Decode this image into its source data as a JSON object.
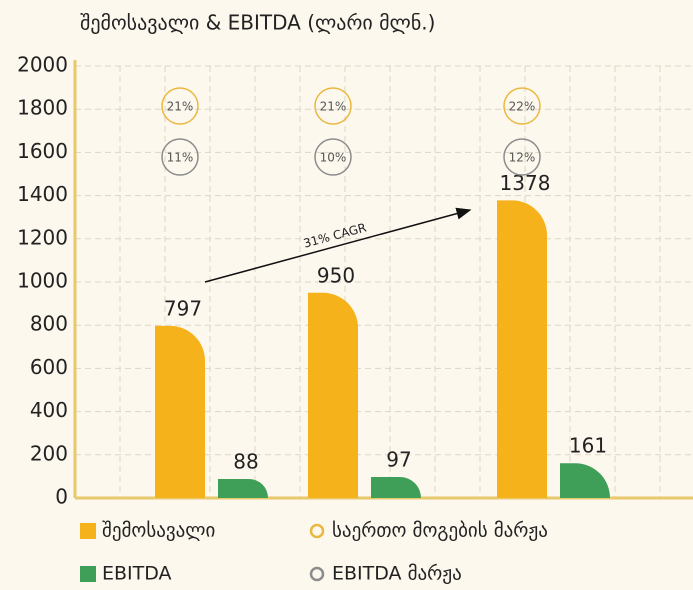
{
  "chart_data": {
    "type": "bar",
    "title": "შემოსავალი & EBITDA (ლარი მლნ.)",
    "categories": [
      null,
      null,
      null
    ],
    "series": [
      {
        "name": "შემოსავალი",
        "color": "#f5b21b",
        "values": [
          797,
          950,
          1378
        ]
      },
      {
        "name": "EBITDA",
        "color": "#3f9e58",
        "values": [
          88,
          97,
          161
        ]
      }
    ],
    "margins": [
      {
        "name": "საერთო მოგების მარჟა",
        "color": "#e9b840",
        "values": [
          21,
          21,
          22
        ],
        "value_labels": [
          "21%",
          "21%",
          "22%"
        ]
      },
      {
        "name": "EBITDA მარჟა",
        "color": "#8c8c8c",
        "values": [
          11,
          10,
          12
        ],
        "value_labels": [
          "11%",
          "10%",
          "12%"
        ]
      }
    ],
    "annotation": "31% CAGR",
    "ylim": [
      0,
      2000
    ],
    "yticks": [
      0,
      200,
      400,
      600,
      800,
      1000,
      1200,
      1400,
      1600,
      1800,
      2000
    ],
    "grid": true
  }
}
